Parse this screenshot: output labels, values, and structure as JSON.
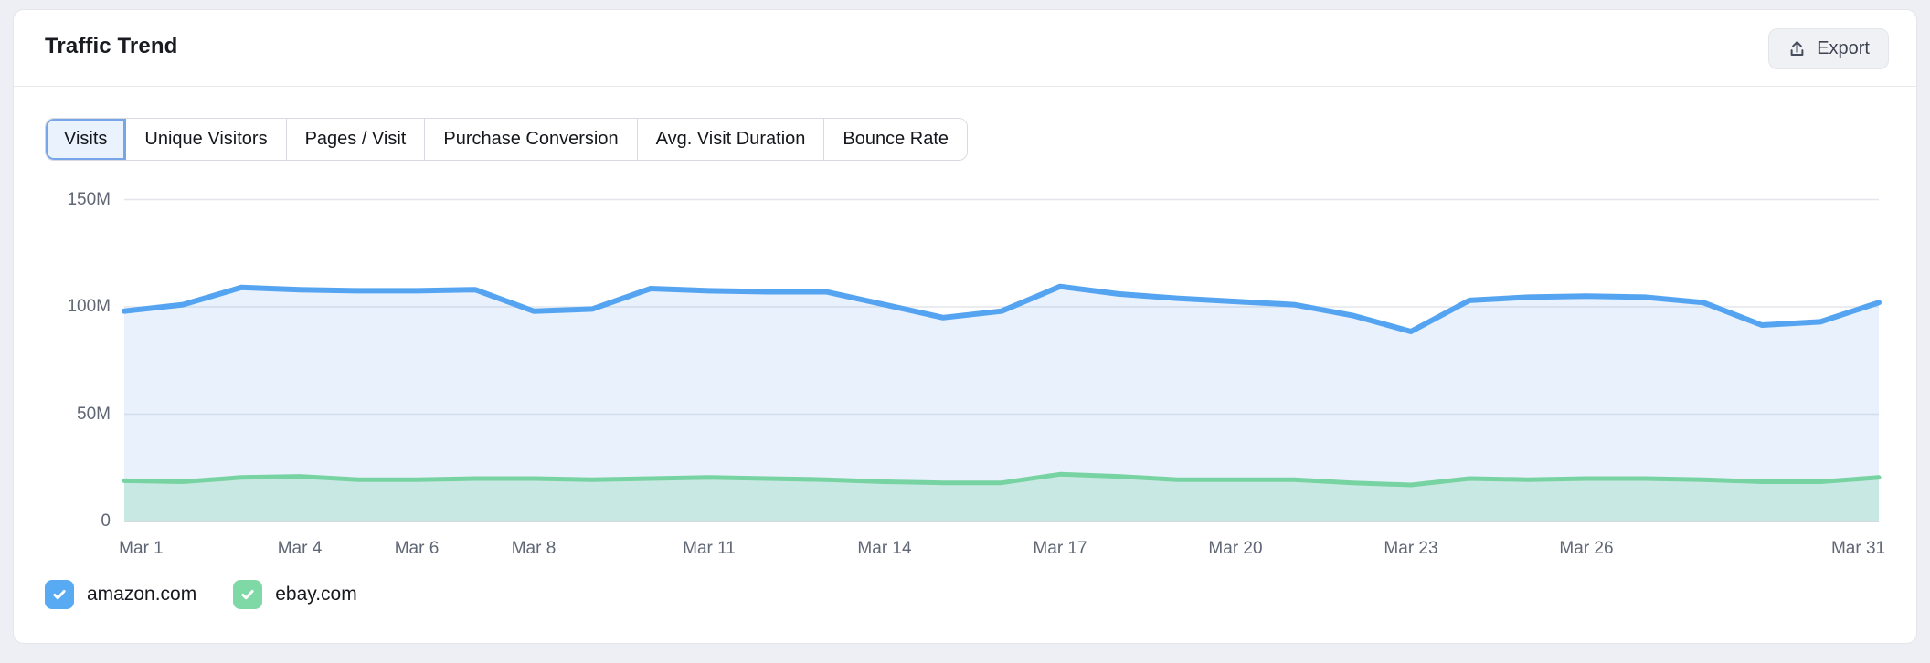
{
  "header": {
    "title": "Traffic Trend",
    "export_label": "Export"
  },
  "tabs": [
    {
      "label": "Visits",
      "selected": true
    },
    {
      "label": "Unique Visitors",
      "selected": false
    },
    {
      "label": "Pages / Visit",
      "selected": false
    },
    {
      "label": "Purchase Conversion",
      "selected": false
    },
    {
      "label": "Avg. Visit Duration",
      "selected": false
    },
    {
      "label": "Bounce Rate",
      "selected": false
    }
  ],
  "legend": [
    {
      "label": "amazon.com",
      "checked": true,
      "color": "#58aaf2"
    },
    {
      "label": "ebay.com",
      "checked": true,
      "color": "#7ed9a6"
    }
  ],
  "chart_data": {
    "type": "area",
    "title": "Traffic Trend — Visits",
    "x": [
      "Mar 1",
      "Mar 2",
      "Mar 3",
      "Mar 4",
      "Mar 5",
      "Mar 6",
      "Mar 7",
      "Mar 8",
      "Mar 9",
      "Mar 10",
      "Mar 11",
      "Mar 12",
      "Mar 13",
      "Mar 14",
      "Mar 15",
      "Mar 16",
      "Mar 17",
      "Mar 18",
      "Mar 19",
      "Mar 20",
      "Mar 21",
      "Mar 22",
      "Mar 23",
      "Mar 24",
      "Mar 25",
      "Mar 26",
      "Mar 27",
      "Mar 28",
      "Mar 29",
      "Mar 30",
      "Mar 31"
    ],
    "x_tick_indices": [
      0,
      3,
      5,
      7,
      10,
      13,
      16,
      19,
      22,
      25,
      30
    ],
    "y_ticks": [
      {
        "value": 0,
        "label": "0"
      },
      {
        "value": 50,
        "label": "50M"
      },
      {
        "value": 100,
        "label": "100M"
      },
      {
        "value": 150,
        "label": "150M"
      }
    ],
    "ylim": [
      0,
      150
    ],
    "value_suffix": "M",
    "grid": "horizontal",
    "legend_position": "bottom",
    "series": [
      {
        "name": "amazon.com",
        "color": "#55a4f1",
        "fill": "rgba(125,180,240,0.18)",
        "values": [
          98,
          101,
          109,
          108,
          107.5,
          107.5,
          108,
          98,
          99,
          108.5,
          107.5,
          107,
          107,
          101,
          95,
          98,
          109.5,
          106,
          104,
          102.5,
          101,
          96,
          88.5,
          103,
          104.5,
          105,
          104.5,
          102,
          91.5,
          93,
          102
        ]
      },
      {
        "name": "ebay.com",
        "color": "#77d3a1",
        "fill": "rgba(119,211,161,0.28)",
        "values": [
          19,
          18.5,
          20.5,
          21,
          19.5,
          19.5,
          20,
          20,
          19.5,
          20,
          20.5,
          20,
          19.5,
          18.5,
          18,
          18,
          22,
          21,
          19.5,
          19.5,
          19.5,
          18,
          17,
          20,
          19.5,
          20,
          20,
          19.5,
          18.5,
          18.5,
          20.5
        ]
      }
    ]
  },
  "colors": {
    "page_bg": "#edeff4",
    "card_bg": "#ffffff",
    "grid_line": "#e3e6ec",
    "zero_line": "#ccd1d9",
    "axis_label": "#5f6674",
    "selected_tab_bg": "#eaf2fd",
    "selected_tab_border": "#78a5e7"
  }
}
